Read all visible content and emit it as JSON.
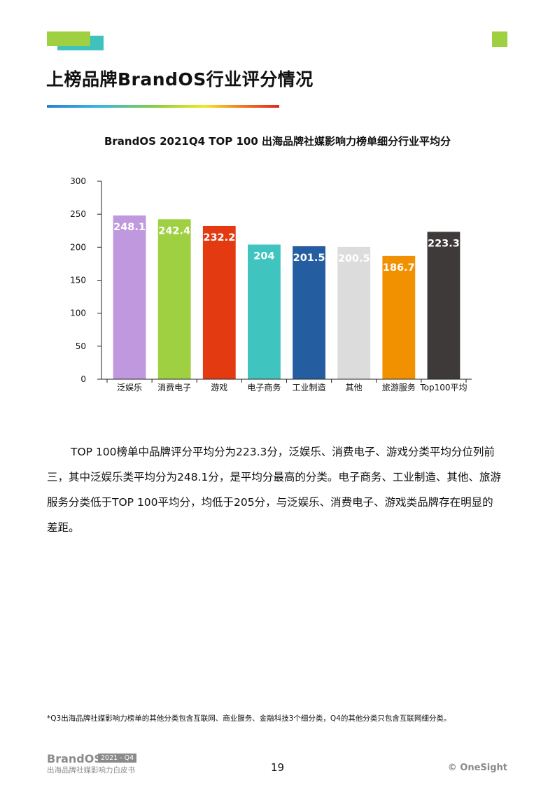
{
  "header": {
    "title": "上榜品牌BrandOS行业评分情况"
  },
  "colors": {
    "accent_green": "#9fd042",
    "accent_teal": "#3fc1bd",
    "bar_fill": [
      "#bf98de",
      "#9fd042",
      "#e43a12",
      "#3fc4c0",
      "#255da1",
      "#dcdcdc",
      "#f29100",
      "#3e3a39"
    ]
  },
  "chart_data": {
    "type": "bar",
    "title": "BrandOS 2021Q4 TOP 100 出海品牌社媒影响力榜单细分行业平均分",
    "categories": [
      "泛娱乐",
      "消费电子",
      "游戏",
      "电子商务",
      "工业制造",
      "其他",
      "旅游服务",
      "Top100平均"
    ],
    "values": [
      248.1,
      242.4,
      232.2,
      204,
      201.5,
      200.5,
      186.7,
      223.3
    ],
    "value_labels": [
      "248.1",
      "242.4",
      "232.2",
      "204",
      "201.5",
      "200.5",
      "186.7",
      "223.3"
    ],
    "ylim": [
      0,
      300
    ],
    "yticks": [
      0,
      50,
      100,
      150,
      200,
      250,
      300
    ],
    "xlabel": "",
    "ylabel": "",
    "grid": false
  },
  "body": {
    "paragraph": "TOP 100榜单中品牌评分平均分为223.3分，泛娱乐、消费电子、游戏分类平均分位列前三，其中泛娱乐类平均分为248.1分，是平均分最高的分类。电子商务、工业制造、其他、旅游服务分类低于TOP 100平均分，均低于205分，与泛娱乐、消费电子、游戏类品牌存在明显的差距。"
  },
  "footnote": "*Q3出海品牌社媒影响力榜单的其他分类包含互联网、商业服务、金融科技3个细分类，Q4的其他分类只包含互联网细分类。",
  "footer": {
    "brand": "BrandOS",
    "badge": "2021 - Q4",
    "subtitle": "出海品牌社媒影响力白皮书",
    "page_number": "19",
    "copyright": "© OneSight"
  }
}
